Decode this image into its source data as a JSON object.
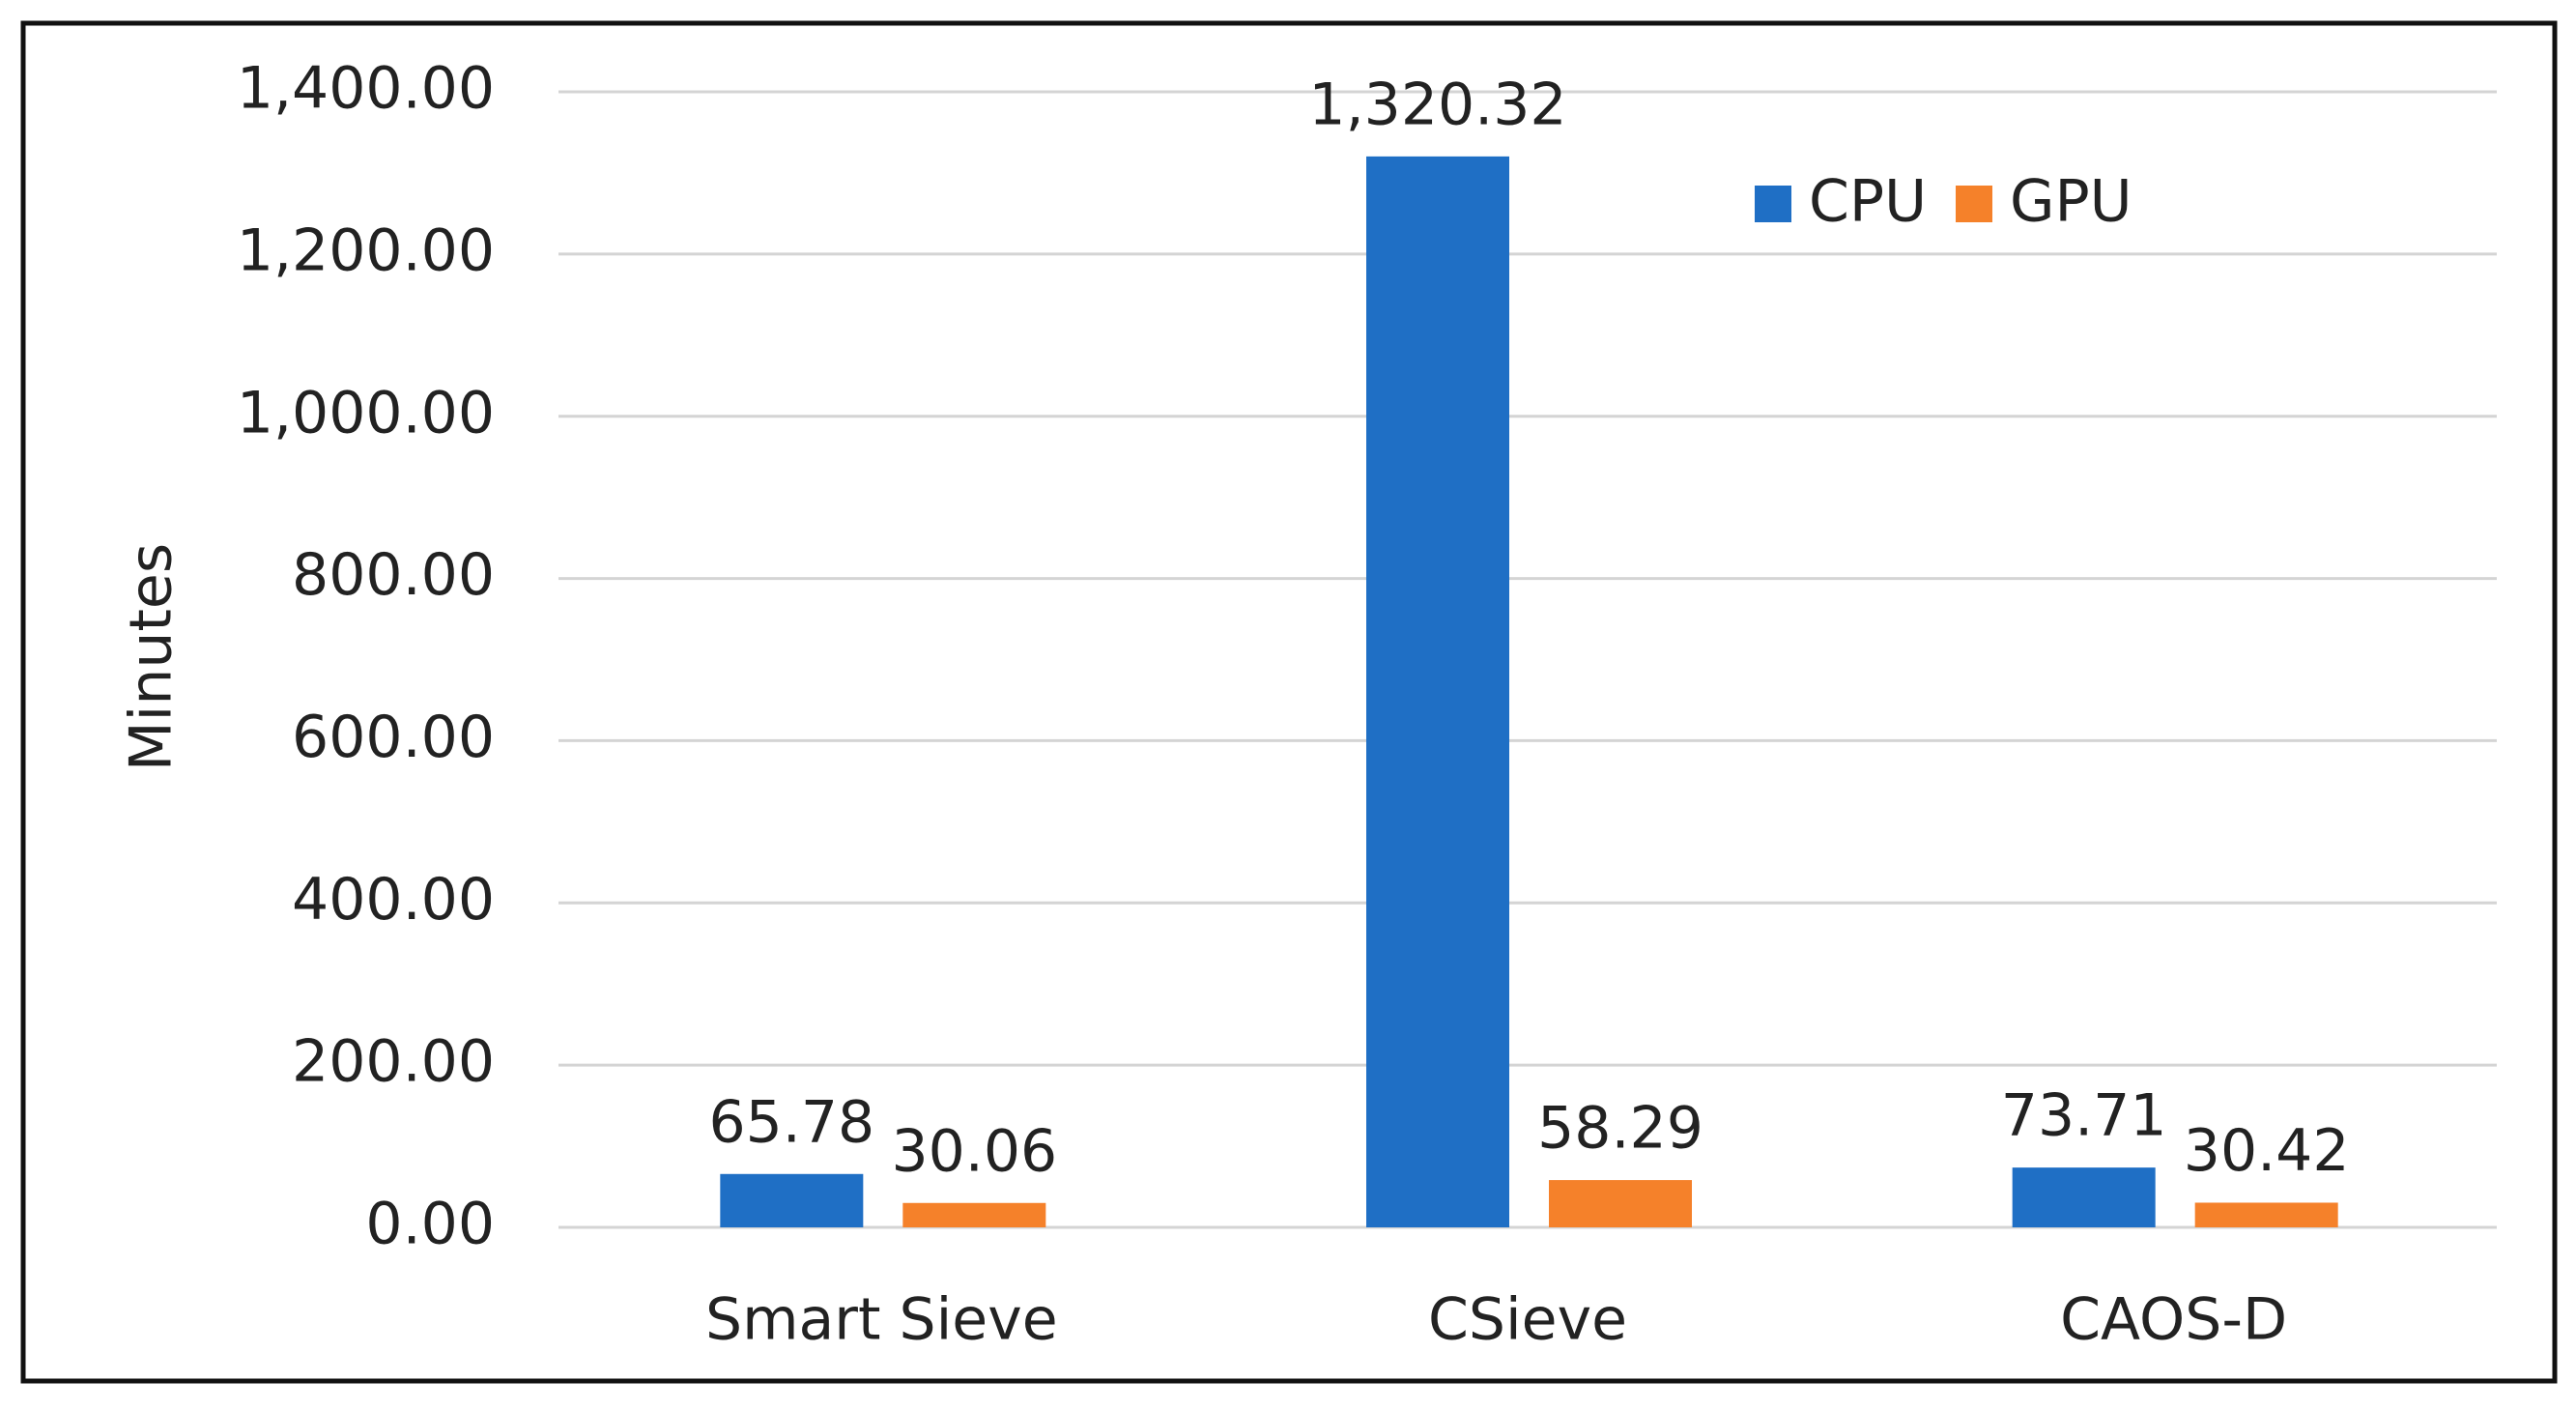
{
  "chart_data": {
    "type": "bar",
    "y_label": "Minutes",
    "categories": [
      "Smart Sieve",
      "CSieve",
      "CAOS-D"
    ],
    "series": [
      {
        "name": "CPU",
        "color": "#1f6fc5",
        "values": [
          65.78,
          1320.32,
          73.71
        ],
        "value_labels": [
          "65.78",
          "1,320.32",
          "73.71"
        ]
      },
      {
        "name": "GPU",
        "color": "#f5812a",
        "values": [
          30.06,
          58.29,
          30.42
        ],
        "value_labels": [
          "30.06",
          "58.29",
          "30.42"
        ]
      }
    ],
    "ylim": [
      0,
      1400
    ],
    "yticks": [
      {
        "value": 0,
        "label": "0.00"
      },
      {
        "value": 200,
        "label": "200.00"
      },
      {
        "value": 400,
        "label": "400.00"
      },
      {
        "value": 600,
        "label": "600.00"
      },
      {
        "value": 800,
        "label": "800.00"
      },
      {
        "value": 1000,
        "label": "1,000.00"
      },
      {
        "value": 1200,
        "label": "1,200.00"
      },
      {
        "value": 1400,
        "label": "1,400.00"
      }
    ],
    "grid": true,
    "legend": "top-right"
  }
}
